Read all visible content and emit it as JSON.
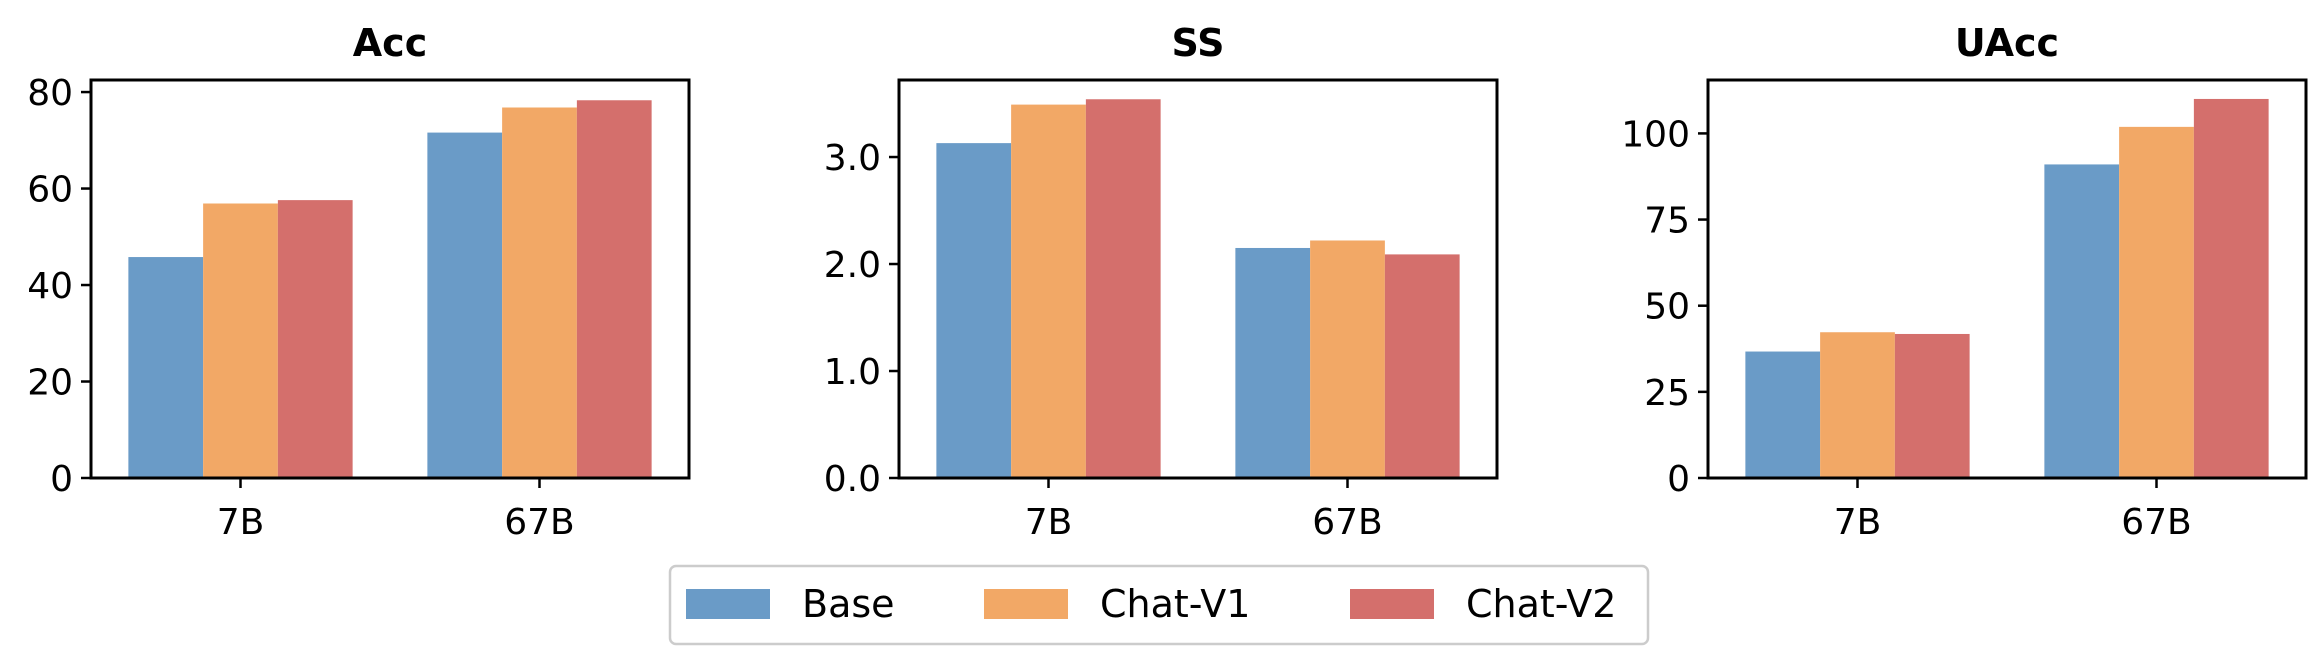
{
  "legend": {
    "items": [
      {
        "label": "Base",
        "color": "#6a9bc7"
      },
      {
        "label": "Chat-V1",
        "color": "#f2a866"
      },
      {
        "label": "Chat-V2",
        "color": "#d46f6c"
      }
    ],
    "placement": "bottom-center"
  },
  "chart_data": [
    {
      "type": "bar",
      "title": "Acc",
      "categories": [
        "7B",
        "67B"
      ],
      "series": [
        {
          "name": "Base",
          "values": [
            45.8,
            71.6
          ]
        },
        {
          "name": "Chat-V1",
          "values": [
            56.9,
            76.8
          ]
        },
        {
          "name": "Chat-V2",
          "values": [
            57.6,
            78.3
          ]
        }
      ],
      "ylim": [
        0,
        82.5
      ],
      "yticks": [
        0,
        20,
        40,
        60,
        80
      ],
      "ytick_labels": [
        "0",
        "20",
        "40",
        "60",
        "80"
      ],
      "grid": false
    },
    {
      "type": "bar",
      "title": "SS",
      "categories": [
        "7B",
        "67B"
      ],
      "series": [
        {
          "name": "Base",
          "values": [
            3.13,
            2.15
          ]
        },
        {
          "name": "Chat-V1",
          "values": [
            3.49,
            2.22
          ]
        },
        {
          "name": "Chat-V2",
          "values": [
            3.54,
            2.09
          ]
        }
      ],
      "ylim": [
        0,
        3.72
      ],
      "yticks": [
        0,
        1,
        2,
        3
      ],
      "ytick_labels": [
        "0.0",
        "1.0",
        "2.0",
        "3.0"
      ],
      "grid": false
    },
    {
      "type": "bar",
      "title": "UAcc",
      "categories": [
        "7B",
        "67B"
      ],
      "series": [
        {
          "name": "Base",
          "values": [
            36.7,
            91.0
          ]
        },
        {
          "name": "Chat-V1",
          "values": [
            42.3,
            101.9
          ]
        },
        {
          "name": "Chat-V2",
          "values": [
            41.8,
            110.0
          ]
        }
      ],
      "ylim": [
        0,
        115.5
      ],
      "yticks": [
        0,
        25,
        50,
        75,
        100
      ],
      "ytick_labels": [
        "0",
        "25",
        "50",
        "75",
        "100"
      ],
      "grid": false
    }
  ]
}
